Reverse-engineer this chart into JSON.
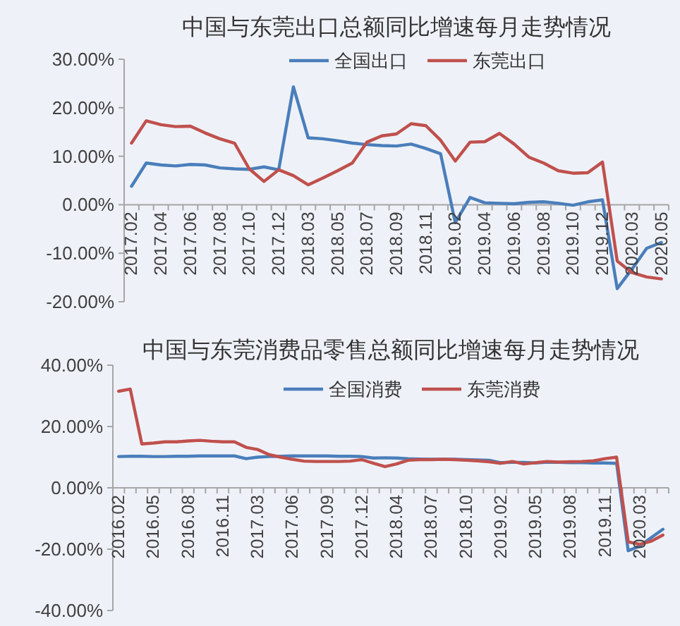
{
  "chart_data": [
    {
      "type": "line",
      "title": "中国与东莞出口总额同比增速每月走势情况",
      "legend": "top",
      "categories": [
        "2017.02",
        null,
        "2017.04",
        null,
        "2017.06",
        null,
        "2017.08",
        null,
        "2017.10",
        null,
        "2017.12",
        null,
        "2018.03",
        null,
        "2018.05",
        null,
        "2018.07",
        null,
        "2018.09",
        null,
        "2018.11",
        null,
        "2019.02",
        null,
        "2019.04",
        null,
        "2019.06",
        null,
        "2019.08",
        null,
        "2019.10",
        null,
        "2019.12",
        null,
        "2020.03",
        null,
        "2020.05"
      ],
      "series": [
        {
          "name": "全国出口",
          "color": "#4a7ebb",
          "values": [
            3.8,
            8.6,
            8.2,
            8.0,
            8.3,
            8.2,
            7.6,
            7.4,
            7.3,
            7.8,
            7.2,
            24.3,
            13.8,
            13.6,
            13.2,
            12.7,
            12.4,
            12.2,
            12.1,
            12.5,
            11.6,
            10.5,
            -3.7,
            1.5,
            0.4,
            0.3,
            0.2,
            0.5,
            0.6,
            0.3,
            -0.1,
            0.6,
            1.0,
            -17.3,
            -13.3,
            -9.0,
            -7.8
          ]
        },
        {
          "name": "东莞出口",
          "color": "#c0504d",
          "values": [
            12.7,
            17.3,
            16.5,
            16.1,
            16.2,
            14.8,
            13.6,
            12.7,
            7.4,
            4.8,
            7.2,
            6.0,
            4.1,
            5.5,
            7.0,
            8.6,
            12.9,
            14.2,
            14.6,
            16.7,
            16.3,
            13.3,
            9.0,
            12.9,
            13.0,
            14.7,
            12.5,
            9.8,
            8.6,
            7.0,
            6.5,
            6.6,
            8.8,
            -11.6,
            -14.0,
            -14.9,
            -15.3
          ]
        }
      ],
      "ylim": [
        -20,
        30
      ],
      "yticks": [
        {
          "value": -20,
          "label": "-20.00%"
        },
        {
          "value": -10,
          "label": "-10.00%"
        },
        {
          "value": 0,
          "label": "0.00%"
        },
        {
          "value": 10,
          "label": "10.00%"
        },
        {
          "value": 20,
          "label": "20.00%"
        },
        {
          "value": 30,
          "label": "30.00%"
        }
      ]
    },
    {
      "type": "line",
      "title": "中国与东莞消费品零售总额同比增速每月走势情况",
      "legend": "top",
      "categories": [
        "2016.02",
        null,
        null,
        "2016.05",
        null,
        null,
        "2016.08",
        null,
        null,
        "2016.11",
        null,
        null,
        "2017.03",
        null,
        null,
        "2017.06",
        null,
        null,
        "2017.09",
        null,
        null,
        "2017.12",
        null,
        null,
        "2018.04",
        null,
        null,
        "2018.07",
        null,
        null,
        "2018.10",
        null,
        null,
        "2019.02",
        null,
        null,
        "2019.05",
        null,
        null,
        "2019.08",
        null,
        null,
        "2019.11",
        null,
        null,
        "2020.03",
        null,
        null
      ],
      "series": [
        {
          "name": "全国消费",
          "color": "#4a7ebb",
          "values": [
            10.2,
            10.3,
            10.3,
            10.2,
            10.2,
            10.3,
            10.3,
            10.4,
            10.4,
            10.4,
            10.4,
            9.5,
            10.0,
            10.2,
            10.3,
            10.4,
            10.4,
            10.4,
            10.4,
            10.3,
            10.3,
            10.2,
            9.7,
            9.8,
            9.7,
            9.5,
            9.4,
            9.3,
            9.3,
            9.3,
            9.2,
            9.1,
            9.0,
            8.2,
            8.3,
            8.3,
            8.1,
            8.4,
            8.3,
            8.2,
            8.2,
            8.1,
            8.1,
            8.0,
            -20.5,
            -19.0,
            -16.2,
            -13.5
          ]
        },
        {
          "name": "东莞消费",
          "color": "#c0504d",
          "values": [
            31.5,
            32.2,
            14.3,
            14.6,
            15.0,
            15.0,
            15.3,
            15.5,
            15.2,
            15.0,
            15.0,
            13.2,
            12.5,
            10.8,
            10.0,
            9.3,
            8.7,
            8.6,
            8.6,
            8.6,
            8.7,
            9.2,
            8.0,
            6.9,
            7.8,
            9.0,
            9.2,
            9.2,
            9.3,
            9.2,
            9.0,
            8.8,
            8.5,
            8.0,
            8.6,
            7.8,
            8.2,
            8.6,
            8.4,
            8.5,
            8.6,
            8.8,
            9.5,
            10.0,
            -17.6,
            -18.4,
            -17.4,
            -15.4
          ]
        }
      ],
      "ylim": [
        -40,
        40
      ],
      "yticks": [
        {
          "value": -40,
          "label": "-40.00%"
        },
        {
          "value": -20,
          "label": "-20.00%"
        },
        {
          "value": 0,
          "label": "0.00%"
        },
        {
          "value": 20,
          "label": "20.00%"
        },
        {
          "value": 40,
          "label": "40.00%"
        }
      ]
    }
  ]
}
